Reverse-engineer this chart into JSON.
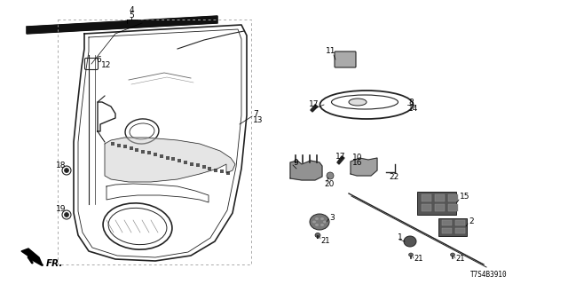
{
  "bg_color": "#ffffff",
  "lc": "#222222",
  "strip_color": "#111111",
  "gray_part": "#888888",
  "dark_part": "#444444",
  "fig_w": 6.4,
  "fig_h": 3.2,
  "dpi": 100,
  "diagram_code": "T7S4B3910"
}
